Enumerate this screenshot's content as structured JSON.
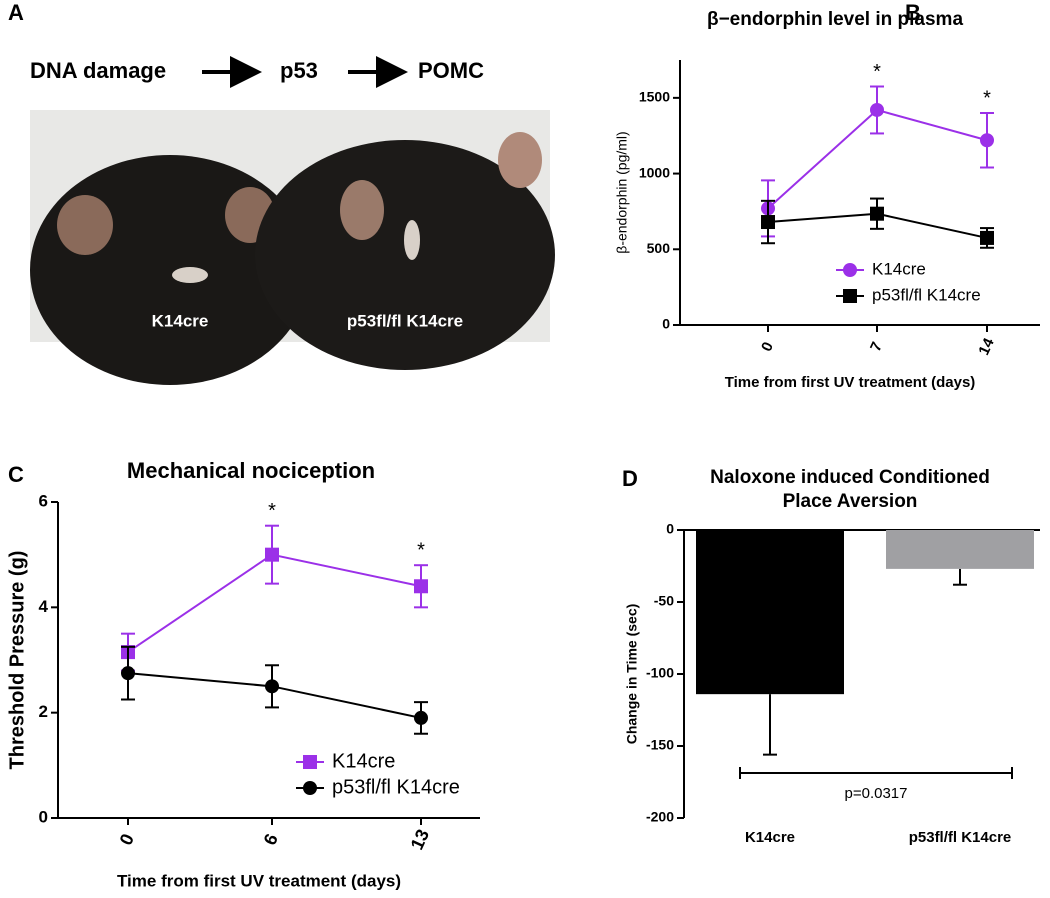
{
  "panel_a": {
    "label": "A",
    "pathway": [
      "DNA damage",
      "p53",
      "POMC"
    ],
    "mouse_labels": [
      "K14cre",
      "p53fl/fl K14cre"
    ]
  },
  "chart_data": [
    {
      "type": "line",
      "panel": "B",
      "title": "β−endorphin level in plasma",
      "y_label": "β-endorphin (pg/ml)",
      "x_label": "Time from first UV treatment (days)",
      "categories": [
        "0",
        "7",
        "14"
      ],
      "ylim": [
        0,
        1750
      ],
      "yticks": [
        0,
        500,
        1000,
        1500
      ],
      "significance": [
        null,
        "*",
        "*"
      ],
      "series": [
        {
          "name": "K14cre",
          "color": "#9b30e8",
          "marker": "circle",
          "values": [
            770,
            1420,
            1220
          ],
          "errors": [
            185,
            155,
            180
          ]
        },
        {
          "name": "p53fl/fl  K14cre",
          "color": "#000000",
          "marker": "square",
          "values": [
            680,
            735,
            575
          ],
          "errors": [
            140,
            100,
            65
          ]
        }
      ]
    },
    {
      "type": "line",
      "panel": "C",
      "title": "Mechanical nociception",
      "y_label": "Threshold Pressure (g)",
      "x_label": "Time from first UV treatment (days)",
      "categories": [
        "0",
        "6",
        "13"
      ],
      "ylim": [
        0,
        6
      ],
      "yticks": [
        0,
        2,
        4,
        6
      ],
      "significance": [
        null,
        "*",
        "*"
      ],
      "series": [
        {
          "name": "K14cre",
          "color": "#9b30e8",
          "marker": "square",
          "values": [
            3.15,
            5.0,
            4.4
          ],
          "errors": [
            0.35,
            0.55,
            0.4
          ]
        },
        {
          "name": "p53fl/fl K14cre",
          "color": "#000000",
          "marker": "circle",
          "values": [
            2.75,
            2.5,
            1.9
          ],
          "errors": [
            0.5,
            0.4,
            0.3
          ]
        }
      ]
    },
    {
      "type": "bar",
      "panel": "D",
      "title": [
        "Naloxone induced Conditioned",
        "Place Aversion"
      ],
      "y_label": "Change in Time (sec)",
      "categories": [
        "K14cre",
        "p53fl/fl K14cre"
      ],
      "values": [
        -114,
        -27
      ],
      "errors": [
        42,
        11
      ],
      "colors": [
        "#000000",
        "#a0a0a3"
      ],
      "ylim": [
        -200,
        0
      ],
      "yticks": [
        0,
        -50,
        -100,
        -150,
        -200
      ],
      "annotation": "p=0.0317"
    }
  ]
}
